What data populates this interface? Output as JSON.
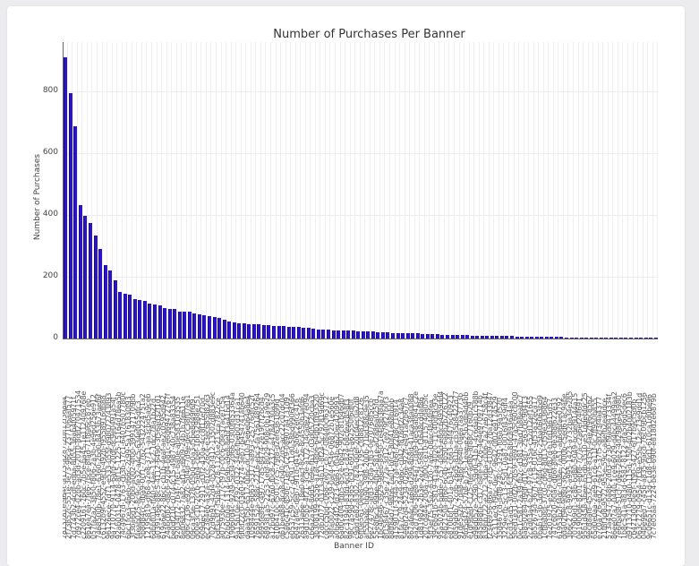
{
  "chart_data": {
    "type": "bar",
    "title": "Number of Purchases Per Banner",
    "xlabel": "Banner ID",
    "ylabel": "Number of Purchases",
    "ylim": [
      0,
      960
    ],
    "yticks": [
      0,
      200,
      400,
      600,
      800
    ],
    "grid": true,
    "legend": null,
    "bar_color": "#2a16c8",
    "categories_note": "~120 banner IDs (UUID-like strings) rendered as overlapping rotated tick labels; individual IDs are illegible",
    "values": [
      910,
      795,
      688,
      432,
      398,
      375,
      335,
      290,
      237,
      220,
      190,
      150,
      145,
      142,
      128,
      125,
      122,
      112,
      110,
      107,
      100,
      97,
      95,
      88,
      87,
      86,
      80,
      78,
      76,
      72,
      70,
      66,
      60,
      55,
      52,
      50,
      48,
      47,
      46,
      45,
      44,
      43,
      42,
      41,
      40,
      39,
      38,
      37,
      36,
      35,
      33,
      30,
      29,
      28,
      27,
      26,
      26,
      25,
      25,
      24,
      24,
      23,
      22,
      21,
      20,
      19,
      18,
      18,
      17,
      17,
      16,
      16,
      15,
      15,
      14,
      14,
      13,
      13,
      12,
      12,
      11,
      11,
      10,
      10,
      10,
      9,
      9,
      9,
      8,
      8,
      8,
      7,
      7,
      7,
      6,
      6,
      6,
      5,
      5,
      5,
      5,
      4,
      4,
      4,
      4,
      3,
      3,
      3,
      3,
      3,
      2,
      2,
      2,
      2,
      2,
      2,
      1,
      1,
      1,
      1
    ]
  }
}
